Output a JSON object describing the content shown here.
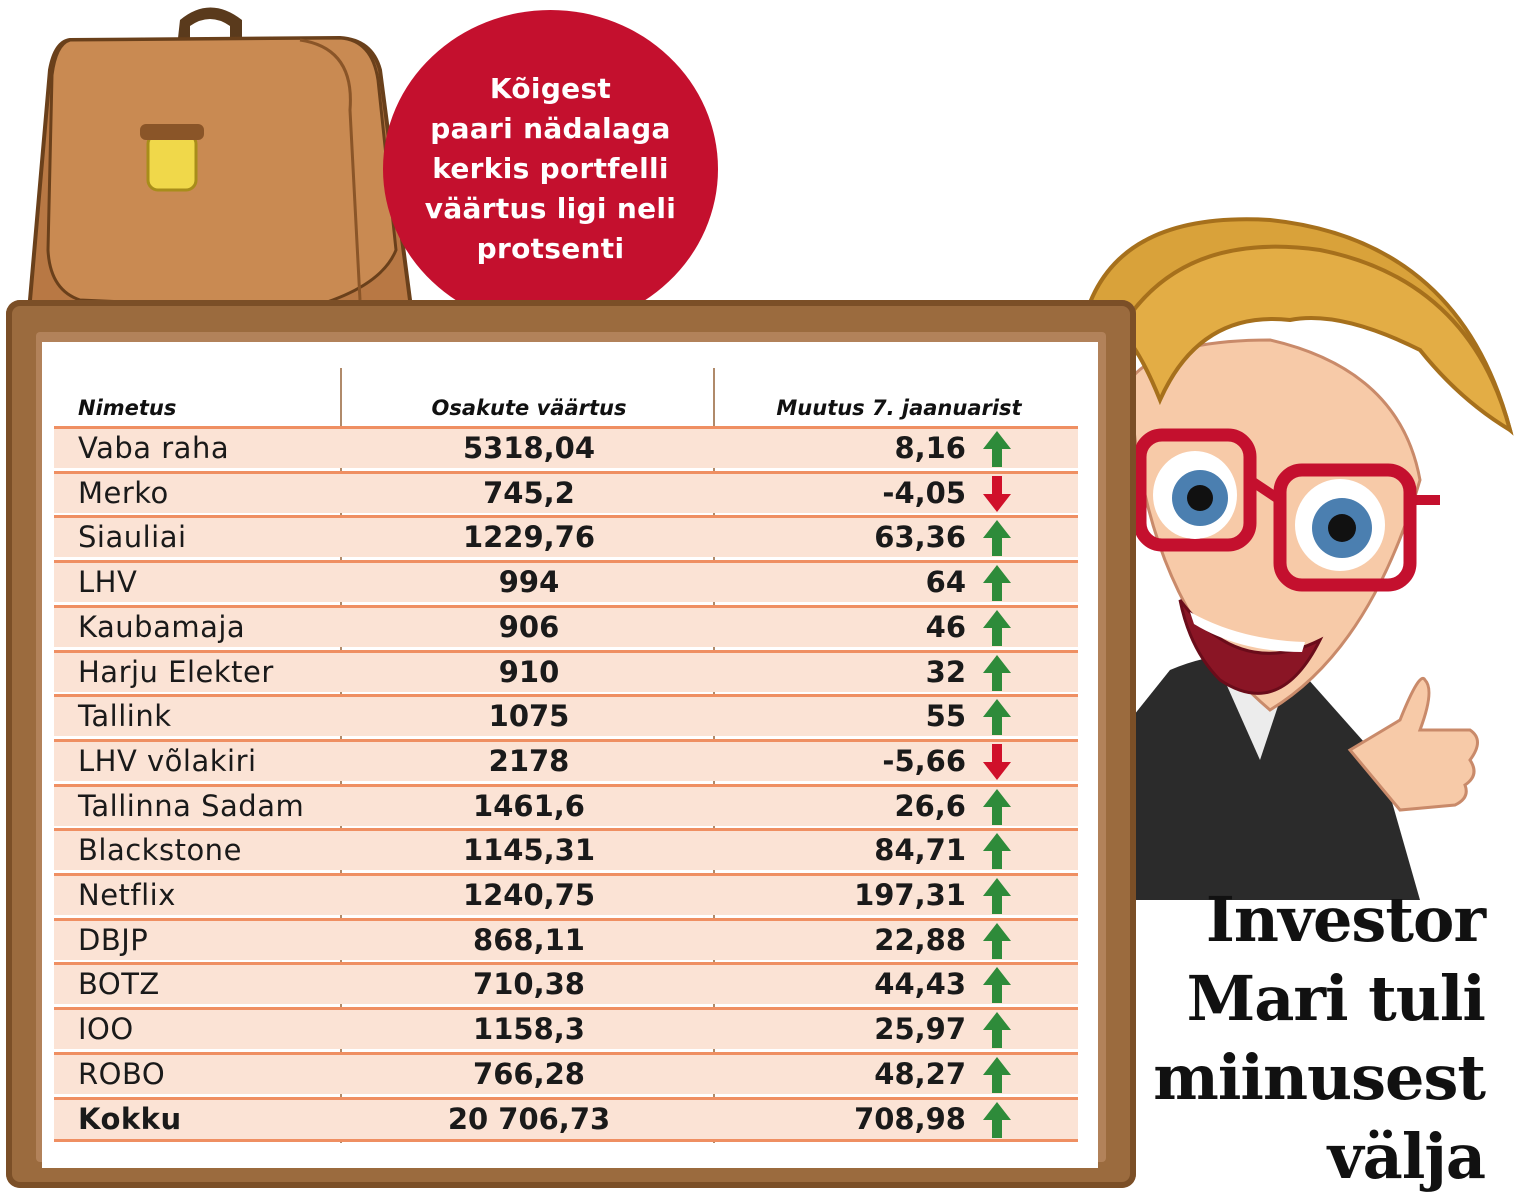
{
  "callout": {
    "lines": [
      "Kõigest",
      "paari nädalaga",
      "kerkis portfelli",
      "väärtus ligi neli",
      "protsenti"
    ]
  },
  "table": {
    "headers": {
      "name": "Nimetus",
      "value": "Osakute väärtus",
      "change": "Muutus 7. jaanuarist"
    },
    "rows": [
      {
        "name": "Vaba raha",
        "value": "5318,04",
        "change": "8,16",
        "direction": "up"
      },
      {
        "name": "Merko",
        "value": "745,2",
        "change": "-4,05",
        "direction": "down"
      },
      {
        "name": "Siauliai",
        "value": "1229,76",
        "change": "63,36",
        "direction": "up"
      },
      {
        "name": "LHV",
        "value": "994",
        "change": "64",
        "direction": "up"
      },
      {
        "name": "Kaubamaja",
        "value": "906",
        "change": "46",
        "direction": "up"
      },
      {
        "name": "Harju Elekter",
        "value": "910",
        "change": "32",
        "direction": "up"
      },
      {
        "name": "Tallink",
        "value": "1075",
        "change": "55",
        "direction": "up"
      },
      {
        "name": "LHV võlakiri",
        "value": "2178",
        "change": "-5,66",
        "direction": "down"
      },
      {
        "name": "Tallinna Sadam",
        "value": "1461,6",
        "change": "26,6",
        "direction": "up"
      },
      {
        "name": "Blackstone",
        "value": "1145,31",
        "change": "84,71",
        "direction": "up"
      },
      {
        "name": "Netflix",
        "value": "1240,75",
        "change": "197,31",
        "direction": "up"
      },
      {
        "name": "DBJP",
        "value": "868,11",
        "change": "22,88",
        "direction": "up"
      },
      {
        "name": "BOTZ",
        "value": "710,38",
        "change": "44,43",
        "direction": "up"
      },
      {
        "name": "IOO",
        "value": "1158,3",
        "change": "25,97",
        "direction": "up"
      },
      {
        "name": "ROBO",
        "value": "766,28",
        "change": "48,27",
        "direction": "up"
      }
    ],
    "total": {
      "name": "Kokku",
      "value": "20 706,73",
      "change": "708,98",
      "direction": "up"
    }
  },
  "headline": {
    "lines": [
      "Investor",
      "Mari tuli",
      "miinusest",
      "välja"
    ]
  },
  "colors": {
    "up_arrow": "#2e8b3a",
    "down_arrow": "#d0102a",
    "callout": "#c4102e",
    "row_fill": "#fbe3d5",
    "row_border": "#ef8f62",
    "frame": "#9b6b3e"
  },
  "icons": {
    "up": "arrow-up-icon",
    "down": "arrow-down-icon",
    "briefcase": "briefcase-icon",
    "character": "investor-woman-illustration"
  }
}
